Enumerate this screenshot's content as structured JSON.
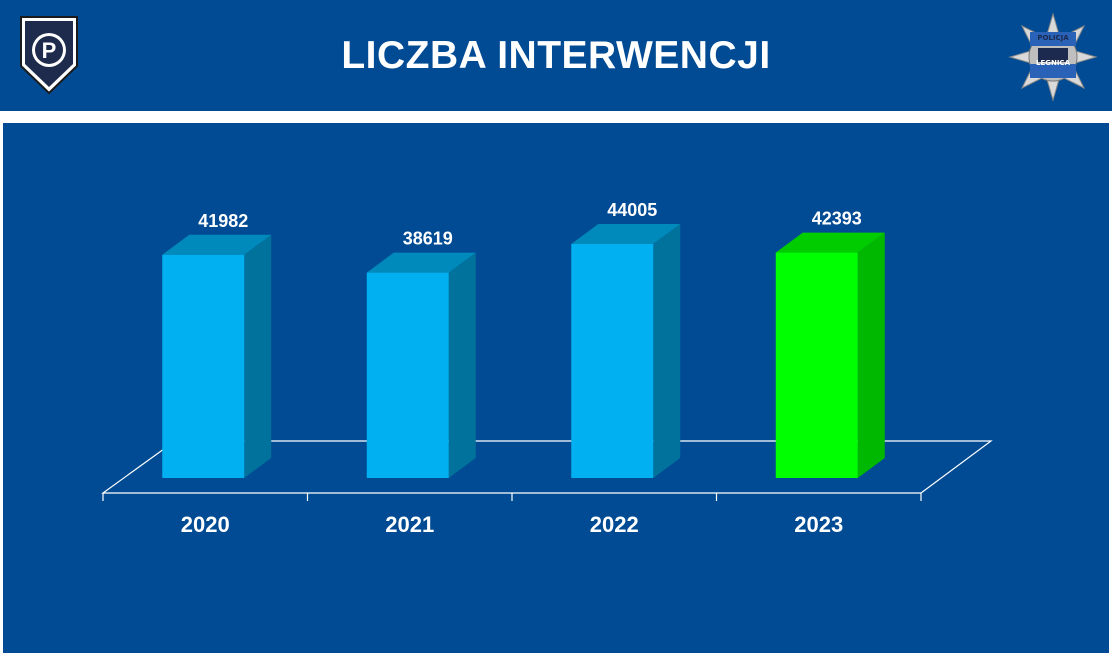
{
  "header": {
    "title": "LICZBA INTERWENCJI",
    "left_logo_icon": "police-p-shield-icon",
    "right_logo_icon": "police-star-badge-icon",
    "right_logo_text_top": "POLICJA",
    "right_logo_text_bottom": "LEGNICA"
  },
  "colors": {
    "background": "#004b93",
    "bar_default": "#00b0f0",
    "bar_highlight": "#00ff00",
    "text": "#ffffff"
  },
  "chart_data": {
    "type": "bar",
    "title": "LICZBA INTERWENCJI",
    "categories": [
      "2020",
      "2021",
      "2022",
      "2023"
    ],
    "values": [
      41982,
      38619,
      44005,
      42393
    ],
    "highlight_index": 3,
    "xlabel": "",
    "ylabel": "",
    "ylim": [
      0,
      44005
    ],
    "grid": false,
    "legend": "none"
  }
}
